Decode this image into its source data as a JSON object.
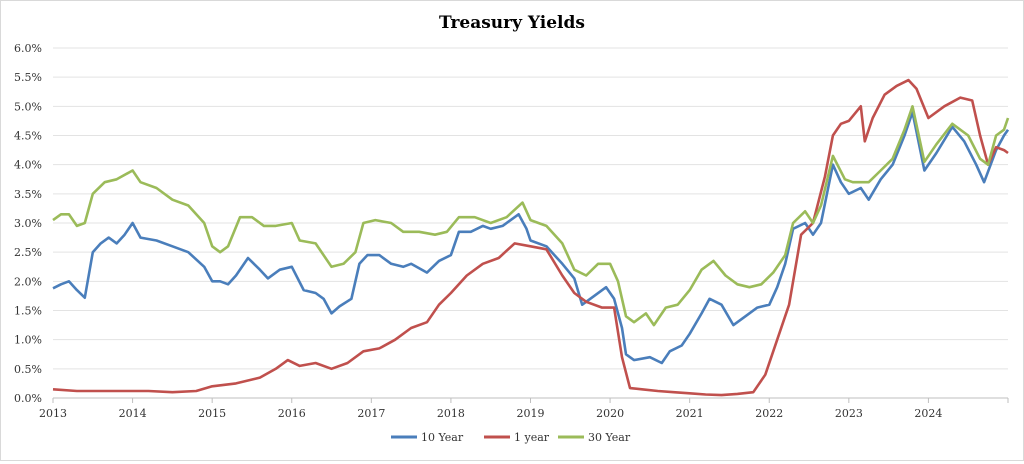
{
  "chart_data": {
    "type": "line",
    "title": "Treasury Yields",
    "xlabel": "",
    "ylabel": "",
    "xlim": [
      2013,
      2025
    ],
    "ylim": [
      0,
      6
    ],
    "x_ticks": [
      2013,
      2014,
      2015,
      2016,
      2017,
      2018,
      2019,
      2020,
      2021,
      2022,
      2023,
      2024
    ],
    "x_tick_labels": [
      "2013",
      "2014",
      "2015",
      "2016",
      "2017",
      "2018",
      "2019",
      "2020",
      "2021",
      "2022",
      "2023",
      "2024"
    ],
    "y_ticks": [
      0,
      0.5,
      1.0,
      1.5,
      2.0,
      2.5,
      3.0,
      3.5,
      4.0,
      4.5,
      5.0,
      5.5,
      6.0
    ],
    "y_tick_labels": [
      "0.0%",
      "0.5%",
      "1.0%",
      "1.5%",
      "2.0%",
      "2.5%",
      "3.0%",
      "3.5%",
      "4.0%",
      "4.5%",
      "5.0%",
      "5.5%",
      "6.0%"
    ],
    "grid": "horizontal",
    "legend": "bottom",
    "series": [
      {
        "name": "10 Year",
        "color": "#4a7ebb",
        "points": [
          [
            2013.0,
            1.88
          ],
          [
            2013.1,
            1.95
          ],
          [
            2013.2,
            2.0
          ],
          [
            2013.3,
            1.85
          ],
          [
            2013.4,
            1.72
          ],
          [
            2013.5,
            2.5
          ],
          [
            2013.6,
            2.65
          ],
          [
            2013.7,
            2.75
          ],
          [
            2013.8,
            2.65
          ],
          [
            2013.9,
            2.8
          ],
          [
            2014.0,
            3.0
          ],
          [
            2014.1,
            2.75
          ],
          [
            2014.3,
            2.7
          ],
          [
            2014.5,
            2.6
          ],
          [
            2014.7,
            2.5
          ],
          [
            2014.9,
            2.25
          ],
          [
            2015.0,
            2.0
          ],
          [
            2015.1,
            2.0
          ],
          [
            2015.2,
            1.95
          ],
          [
            2015.3,
            2.1
          ],
          [
            2015.45,
            2.4
          ],
          [
            2015.6,
            2.2
          ],
          [
            2015.7,
            2.05
          ],
          [
            2015.85,
            2.2
          ],
          [
            2016.0,
            2.25
          ],
          [
            2016.15,
            1.85
          ],
          [
            2016.3,
            1.8
          ],
          [
            2016.4,
            1.7
          ],
          [
            2016.5,
            1.45
          ],
          [
            2016.6,
            1.57
          ],
          [
            2016.75,
            1.7
          ],
          [
            2016.85,
            2.3
          ],
          [
            2016.95,
            2.45
          ],
          [
            2017.1,
            2.45
          ],
          [
            2017.25,
            2.3
          ],
          [
            2017.4,
            2.25
          ],
          [
            2017.5,
            2.3
          ],
          [
            2017.7,
            2.15
          ],
          [
            2017.85,
            2.35
          ],
          [
            2018.0,
            2.45
          ],
          [
            2018.1,
            2.85
          ],
          [
            2018.25,
            2.85
          ],
          [
            2018.4,
            2.95
          ],
          [
            2018.5,
            2.9
          ],
          [
            2018.65,
            2.95
          ],
          [
            2018.85,
            3.15
          ],
          [
            2018.95,
            2.9
          ],
          [
            2019.0,
            2.7
          ],
          [
            2019.2,
            2.6
          ],
          [
            2019.4,
            2.3
          ],
          [
            2019.55,
            2.05
          ],
          [
            2019.65,
            1.6
          ],
          [
            2019.8,
            1.75
          ],
          [
            2019.95,
            1.9
          ],
          [
            2020.05,
            1.7
          ],
          [
            2020.15,
            1.2
          ],
          [
            2020.2,
            0.75
          ],
          [
            2020.3,
            0.65
          ],
          [
            2020.5,
            0.7
          ],
          [
            2020.65,
            0.6
          ],
          [
            2020.75,
            0.8
          ],
          [
            2020.9,
            0.9
          ],
          [
            2021.0,
            1.1
          ],
          [
            2021.15,
            1.45
          ],
          [
            2021.25,
            1.7
          ],
          [
            2021.4,
            1.6
          ],
          [
            2021.55,
            1.25
          ],
          [
            2021.7,
            1.4
          ],
          [
            2021.85,
            1.55
          ],
          [
            2022.0,
            1.6
          ],
          [
            2022.1,
            1.9
          ],
          [
            2022.2,
            2.3
          ],
          [
            2022.3,
            2.9
          ],
          [
            2022.45,
            3.0
          ],
          [
            2022.55,
            2.8
          ],
          [
            2022.65,
            3.0
          ],
          [
            2022.8,
            4.0
          ],
          [
            2022.9,
            3.7
          ],
          [
            2023.0,
            3.5
          ],
          [
            2023.15,
            3.6
          ],
          [
            2023.25,
            3.4
          ],
          [
            2023.4,
            3.75
          ],
          [
            2023.55,
            4.0
          ],
          [
            2023.7,
            4.5
          ],
          [
            2023.8,
            4.9
          ],
          [
            2023.95,
            3.9
          ],
          [
            2024.1,
            4.2
          ],
          [
            2024.3,
            4.65
          ],
          [
            2024.45,
            4.4
          ],
          [
            2024.6,
            4.0
          ],
          [
            2024.7,
            3.7
          ],
          [
            2024.85,
            4.25
          ],
          [
            2024.95,
            4.5
          ],
          [
            2025.0,
            4.6
          ]
        ]
      },
      {
        "name": "1 year",
        "color": "#c0504d",
        "points": [
          [
            2013.0,
            0.15
          ],
          [
            2013.3,
            0.12
          ],
          [
            2013.6,
            0.12
          ],
          [
            2013.9,
            0.12
          ],
          [
            2014.2,
            0.12
          ],
          [
            2014.5,
            0.1
          ],
          [
            2014.8,
            0.12
          ],
          [
            2015.0,
            0.2
          ],
          [
            2015.3,
            0.25
          ],
          [
            2015.6,
            0.35
          ],
          [
            2015.8,
            0.5
          ],
          [
            2015.95,
            0.65
          ],
          [
            2016.1,
            0.55
          ],
          [
            2016.3,
            0.6
          ],
          [
            2016.5,
            0.5
          ],
          [
            2016.7,
            0.6
          ],
          [
            2016.9,
            0.8
          ],
          [
            2017.1,
            0.85
          ],
          [
            2017.3,
            1.0
          ],
          [
            2017.5,
            1.2
          ],
          [
            2017.7,
            1.3
          ],
          [
            2017.85,
            1.6
          ],
          [
            2018.0,
            1.8
          ],
          [
            2018.2,
            2.1
          ],
          [
            2018.4,
            2.3
          ],
          [
            2018.6,
            2.4
          ],
          [
            2018.8,
            2.65
          ],
          [
            2019.0,
            2.6
          ],
          [
            2019.2,
            2.55
          ],
          [
            2019.4,
            2.1
          ],
          [
            2019.55,
            1.8
          ],
          [
            2019.7,
            1.65
          ],
          [
            2019.9,
            1.55
          ],
          [
            2020.05,
            1.55
          ],
          [
            2020.15,
            0.7
          ],
          [
            2020.25,
            0.17
          ],
          [
            2020.4,
            0.15
          ],
          [
            2020.6,
            0.12
          ],
          [
            2020.8,
            0.1
          ],
          [
            2021.0,
            0.08
          ],
          [
            2021.2,
            0.06
          ],
          [
            2021.4,
            0.05
          ],
          [
            2021.6,
            0.07
          ],
          [
            2021.8,
            0.1
          ],
          [
            2021.95,
            0.4
          ],
          [
            2022.1,
            1.0
          ],
          [
            2022.25,
            1.6
          ],
          [
            2022.4,
            2.8
          ],
          [
            2022.55,
            3.0
          ],
          [
            2022.7,
            3.8
          ],
          [
            2022.8,
            4.5
          ],
          [
            2022.9,
            4.7
          ],
          [
            2023.0,
            4.75
          ],
          [
            2023.15,
            5.0
          ],
          [
            2023.2,
            4.4
          ],
          [
            2023.3,
            4.8
          ],
          [
            2023.45,
            5.2
          ],
          [
            2023.6,
            5.35
          ],
          [
            2023.75,
            5.45
          ],
          [
            2023.85,
            5.3
          ],
          [
            2024.0,
            4.8
          ],
          [
            2024.2,
            5.0
          ],
          [
            2024.4,
            5.15
          ],
          [
            2024.55,
            5.1
          ],
          [
            2024.65,
            4.5
          ],
          [
            2024.75,
            4.0
          ],
          [
            2024.85,
            4.3
          ],
          [
            2024.95,
            4.25
          ],
          [
            2025.0,
            4.2
          ]
        ]
      },
      {
        "name": "30 Year",
        "color": "#9bbb59",
        "points": [
          [
            2013.0,
            3.05
          ],
          [
            2013.1,
            3.15
          ],
          [
            2013.2,
            3.15
          ],
          [
            2013.3,
            2.95
          ],
          [
            2013.4,
            3.0
          ],
          [
            2013.5,
            3.5
          ],
          [
            2013.65,
            3.7
          ],
          [
            2013.8,
            3.75
          ],
          [
            2014.0,
            3.9
          ],
          [
            2014.1,
            3.7
          ],
          [
            2014.3,
            3.6
          ],
          [
            2014.5,
            3.4
          ],
          [
            2014.7,
            3.3
          ],
          [
            2014.9,
            3.0
          ],
          [
            2015.0,
            2.6
          ],
          [
            2015.1,
            2.5
          ],
          [
            2015.2,
            2.6
          ],
          [
            2015.35,
            3.1
          ],
          [
            2015.5,
            3.1
          ],
          [
            2015.65,
            2.95
          ],
          [
            2015.8,
            2.95
          ],
          [
            2016.0,
            3.0
          ],
          [
            2016.1,
            2.7
          ],
          [
            2016.3,
            2.65
          ],
          [
            2016.5,
            2.25
          ],
          [
            2016.65,
            2.3
          ],
          [
            2016.8,
            2.5
          ],
          [
            2016.9,
            3.0
          ],
          [
            2017.05,
            3.05
          ],
          [
            2017.25,
            3.0
          ],
          [
            2017.4,
            2.85
          ],
          [
            2017.6,
            2.85
          ],
          [
            2017.8,
            2.8
          ],
          [
            2017.95,
            2.85
          ],
          [
            2018.1,
            3.1
          ],
          [
            2018.3,
            3.1
          ],
          [
            2018.5,
            3.0
          ],
          [
            2018.7,
            3.1
          ],
          [
            2018.9,
            3.35
          ],
          [
            2019.0,
            3.05
          ],
          [
            2019.2,
            2.95
          ],
          [
            2019.4,
            2.65
          ],
          [
            2019.55,
            2.2
          ],
          [
            2019.7,
            2.1
          ],
          [
            2019.85,
            2.3
          ],
          [
            2020.0,
            2.3
          ],
          [
            2020.1,
            2.0
          ],
          [
            2020.2,
            1.4
          ],
          [
            2020.3,
            1.3
          ],
          [
            2020.45,
            1.45
          ],
          [
            2020.55,
            1.25
          ],
          [
            2020.7,
            1.55
          ],
          [
            2020.85,
            1.6
          ],
          [
            2021.0,
            1.85
          ],
          [
            2021.15,
            2.2
          ],
          [
            2021.3,
            2.35
          ],
          [
            2021.45,
            2.1
          ],
          [
            2021.6,
            1.95
          ],
          [
            2021.75,
            1.9
          ],
          [
            2021.9,
            1.95
          ],
          [
            2022.05,
            2.15
          ],
          [
            2022.2,
            2.45
          ],
          [
            2022.3,
            3.0
          ],
          [
            2022.45,
            3.2
          ],
          [
            2022.55,
            3.0
          ],
          [
            2022.65,
            3.3
          ],
          [
            2022.8,
            4.15
          ],
          [
            2022.95,
            3.75
          ],
          [
            2023.05,
            3.7
          ],
          [
            2023.25,
            3.7
          ],
          [
            2023.4,
            3.9
          ],
          [
            2023.55,
            4.1
          ],
          [
            2023.7,
            4.6
          ],
          [
            2023.8,
            5.0
          ],
          [
            2023.95,
            4.05
          ],
          [
            2024.1,
            4.35
          ],
          [
            2024.3,
            4.7
          ],
          [
            2024.5,
            4.5
          ],
          [
            2024.65,
            4.1
          ],
          [
            2024.75,
            4.0
          ],
          [
            2024.85,
            4.5
          ],
          [
            2024.95,
            4.6
          ],
          [
            2025.0,
            4.8
          ]
        ]
      }
    ]
  }
}
